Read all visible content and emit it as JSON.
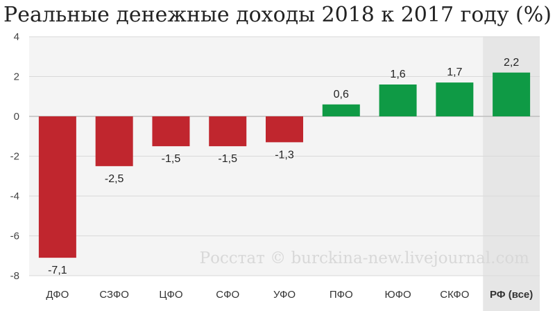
{
  "chart_data": {
    "type": "bar",
    "title": "Реальные денежные доходы 2018 к 2017 году (%)",
    "categories": [
      "ДФО",
      "СЗФО",
      "ЦФО",
      "СФО",
      "УФО",
      "ПФО",
      "ЮФО",
      "СКФО",
      "РФ (все)"
    ],
    "values": [
      -7.1,
      -2.5,
      -1.5,
      -1.5,
      -1.3,
      0.6,
      1.6,
      1.7,
      2.2
    ],
    "data_labels": [
      "-7,1",
      "-2,5",
      "-1,5",
      "-1,5",
      "-1,3",
      "0,6",
      "1,6",
      "1,7",
      "2,2"
    ],
    "highlight_category": "РФ (все)",
    "ylim": [
      -8,
      4
    ],
    "yticks": [
      4,
      2,
      0,
      -2,
      -4,
      -6,
      -8
    ],
    "ytick_labels": [
      "4",
      "2",
      "0",
      "-2",
      "-4",
      "-6",
      "-8"
    ],
    "xlabel": "",
    "ylabel": "",
    "grid": true,
    "colors": {
      "negative": "#c0262e",
      "positive": "#0f9a45",
      "highlight_band": "#e6e6e6",
      "plot_background": "#f4f4f4",
      "grid": "#d9d9d9"
    },
    "watermark": "Росстат © burckina-new.livejournal.com"
  }
}
